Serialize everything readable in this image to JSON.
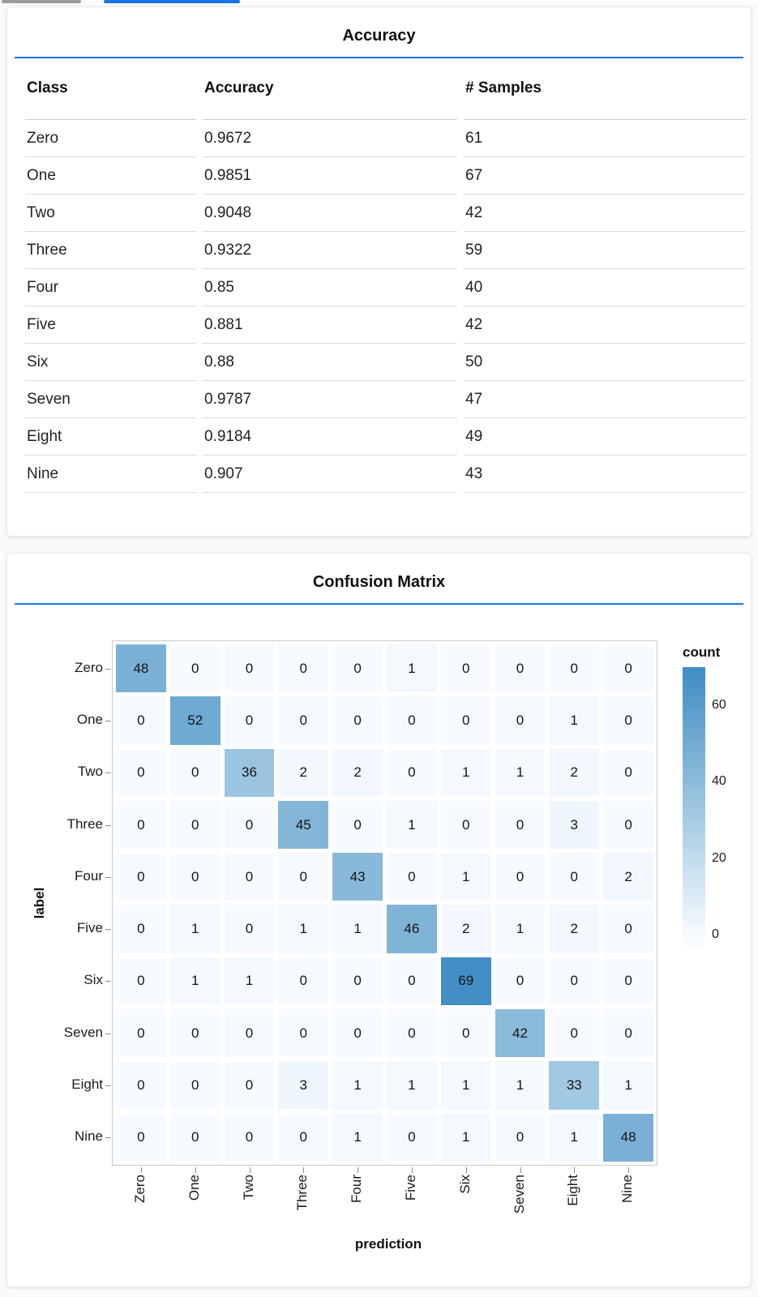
{
  "accent_color": "#1a73e8",
  "top_tabs": {
    "items": [
      {
        "state": "inactive",
        "color": "#9b9b9b"
      },
      {
        "state": "active",
        "color": "#1a73e8"
      }
    ]
  },
  "accuracy_card": {
    "title": "Accuracy"
  },
  "confusion_card": {
    "title": "Confusion Matrix"
  },
  "chart_data": [
    {
      "type": "table",
      "title": "Accuracy",
      "columns": [
        "Class",
        "Accuracy",
        "# Samples"
      ],
      "rows": [
        [
          "Zero",
          "0.9672",
          "61"
        ],
        [
          "One",
          "0.9851",
          "67"
        ],
        [
          "Two",
          "0.9048",
          "42"
        ],
        [
          "Three",
          "0.9322",
          "59"
        ],
        [
          "Four",
          "0.85",
          "40"
        ],
        [
          "Five",
          "0.881",
          "42"
        ],
        [
          "Six",
          "0.88",
          "50"
        ],
        [
          "Seven",
          "0.9787",
          "47"
        ],
        [
          "Eight",
          "0.9184",
          "49"
        ],
        [
          "Nine",
          "0.907",
          "43"
        ]
      ]
    },
    {
      "type": "heatmap",
      "title": "Confusion Matrix",
      "xlabel": "prediction",
      "ylabel": "label",
      "x_categories": [
        "Zero",
        "One",
        "Two",
        "Three",
        "Four",
        "Five",
        "Six",
        "Seven",
        "Eight",
        "Nine"
      ],
      "y_categories": [
        "Zero",
        "One",
        "Two",
        "Three",
        "Four",
        "Five",
        "Six",
        "Seven",
        "Eight",
        "Nine"
      ],
      "matrix": [
        [
          48,
          0,
          0,
          0,
          0,
          1,
          0,
          0,
          0,
          0
        ],
        [
          0,
          52,
          0,
          0,
          0,
          0,
          0,
          0,
          1,
          0
        ],
        [
          0,
          0,
          36,
          2,
          2,
          0,
          1,
          1,
          2,
          0
        ],
        [
          0,
          0,
          0,
          45,
          0,
          1,
          0,
          0,
          3,
          0
        ],
        [
          0,
          0,
          0,
          0,
          43,
          0,
          1,
          0,
          0,
          2
        ],
        [
          0,
          1,
          0,
          1,
          1,
          46,
          2,
          1,
          2,
          0
        ],
        [
          0,
          1,
          1,
          0,
          0,
          0,
          69,
          0,
          0,
          0
        ],
        [
          0,
          0,
          0,
          0,
          0,
          0,
          0,
          42,
          0,
          0
        ],
        [
          0,
          0,
          0,
          3,
          1,
          1,
          1,
          1,
          33,
          1
        ],
        [
          0,
          0,
          0,
          0,
          1,
          0,
          1,
          0,
          1,
          48
        ]
      ],
      "legend": {
        "title": "count",
        "ticks": [
          60,
          40,
          20,
          0
        ],
        "domain": [
          0,
          70
        ]
      },
      "colors": {
        "scale_low": "#f7fbff",
        "scale_mid": "#9dc6e0",
        "scale_high": "#3f8cc4"
      }
    }
  ]
}
